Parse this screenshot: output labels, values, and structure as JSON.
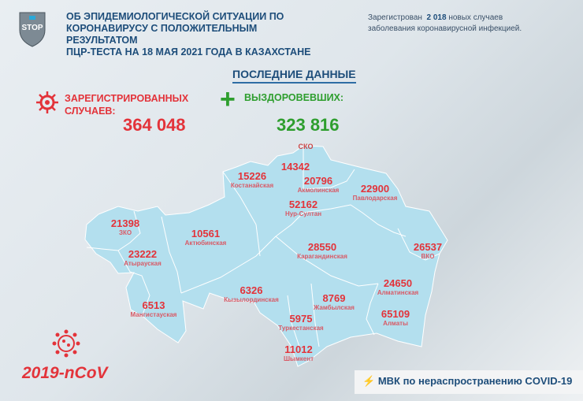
{
  "header": {
    "logo_text": "STOP",
    "title_lines": [
      "ОБ ЭПИДЕМИОЛОГИЧЕСКОЙ СИТУАЦИИ ПО",
      "КОРОНАВИРУСУ С ПОЛОЖИТЕЛЬНЫМ РЕЗУЛЬТАТОМ",
      "ПЦР-ТЕСТА НА  18 МАЯ 2021 ГОДА В КАЗАХСТАНЕ"
    ],
    "news_prefix": "Зарегистрован",
    "news_count": "2 018",
    "news_suffix": "новых случаев",
    "news_line2": "заболевания коронавирусной инфекцией."
  },
  "latest_label": "ПОСЛЕДНИЕ ДАННЫЕ",
  "registered": {
    "label1": "ЗАРЕГИСТРИРОВАННЫХ",
    "label2": "СЛУЧАЕВ:",
    "value": "364 048",
    "color": "#e3333a"
  },
  "recovered": {
    "label": "ВЫЗДОРОВЕВШИХ:",
    "value": "323 816",
    "color": "#2e9e2e"
  },
  "regions": [
    {
      "name": "СКО",
      "value": ""
    },
    {
      "name": "",
      "value": "14342"
    },
    {
      "name": "Костанайская",
      "value": "15226"
    },
    {
      "name": "Акмолинская",
      "value": "20796"
    },
    {
      "name": "Павлодарская",
      "value": "22900"
    },
    {
      "name": "Нур-Султан",
      "value": "52162"
    },
    {
      "name": "ЗКО",
      "value": "21398"
    },
    {
      "name": "Актюбинская",
      "value": "10561"
    },
    {
      "name": "Карагандинская",
      "value": "28550"
    },
    {
      "name": "ВКО",
      "value": "26537"
    },
    {
      "name": "Атырауская",
      "value": "23222"
    },
    {
      "name": "Кызылординская",
      "value": "6326"
    },
    {
      "name": "Алматинская",
      "value": "24650"
    },
    {
      "name": "Мангистауская",
      "value": "6513"
    },
    {
      "name": "Жамбылская",
      "value": "8769"
    },
    {
      "name": "Алматы",
      "value": "65109"
    },
    {
      "name": "Туркестанская",
      "value": "5975"
    },
    {
      "name": "Шымкент",
      "value": "11012"
    }
  ],
  "map_color": "#b3dfee",
  "virus_label": "2019-nCoV",
  "footer": "МВК по нераспространению COVID-19"
}
